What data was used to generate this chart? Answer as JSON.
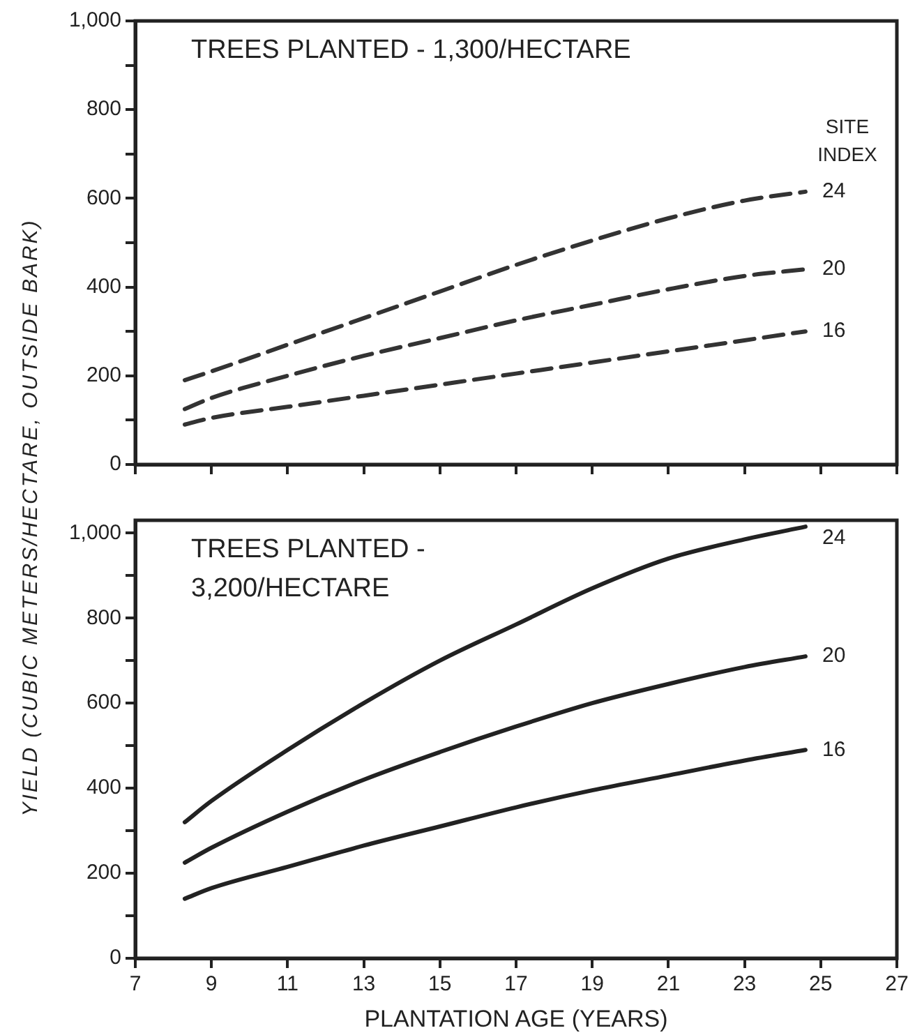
{
  "chart_data": [
    {
      "type": "line",
      "title": "TREES PLANTED - 1,300/HECTARE",
      "annotations": [
        "SITE INDEX"
      ],
      "line_style": "dashed",
      "marker": "none",
      "grid": false,
      "legend": false,
      "tick_labels": "y",
      "xlim": [
        7,
        27
      ],
      "xticks": [
        7,
        9,
        11,
        13,
        15,
        17,
        19,
        21,
        23,
        25,
        27
      ],
      "ylim": [
        0,
        1000
      ],
      "yticks": [
        0,
        {
          "value": 100,
          "label": null
        },
        200,
        {
          "value": 300,
          "label": null
        },
        400,
        {
          "value": 500,
          "label": null
        },
        600,
        {
          "value": 700,
          "label": null
        },
        800,
        {
          "value": 900,
          "label": null
        },
        {
          "value": 1000,
          "label": "1,000"
        }
      ],
      "x": [
        8.3,
        9,
        11,
        13,
        15,
        17,
        19,
        21,
        23,
        24.6
      ],
      "series": [
        {
          "name": "24",
          "color": "#333333",
          "values": [
            190,
            210,
            270,
            330,
            390,
            450,
            505,
            555,
            595,
            615
          ]
        },
        {
          "name": "20",
          "color": "#333333",
          "values": [
            125,
            150,
            200,
            245,
            285,
            325,
            360,
            395,
            425,
            440
          ]
        },
        {
          "name": "16",
          "color": "#333333",
          "values": [
            90,
            105,
            130,
            155,
            180,
            205,
            230,
            255,
            280,
            300
          ]
        }
      ]
    },
    {
      "type": "line",
      "title": "TREES PLANTED - 3,200/HECTARE",
      "xlabel": "PLANTATION AGE (YEARS)",
      "ylabel": "YIELD (CUBIC METERS/HECTARE, OUTSIDE BARK)",
      "line_style": "solid",
      "marker": "none",
      "grid": false,
      "legend": false,
      "xlim": [
        7,
        27
      ],
      "xticks": [
        7,
        9,
        11,
        13,
        15,
        17,
        19,
        21,
        23,
        25,
        27
      ],
      "ylim": [
        0,
        1030
      ],
      "yticks": [
        0,
        {
          "value": 100,
          "label": null
        },
        200,
        {
          "value": 300,
          "label": null
        },
        400,
        {
          "value": 500,
          "label": null
        },
        600,
        {
          "value": 700,
          "label": null
        },
        800,
        {
          "value": 900,
          "label": null
        },
        {
          "value": 1000,
          "label": "1,000"
        }
      ],
      "x": [
        8.3,
        9,
        11,
        13,
        15,
        17,
        19,
        21,
        23,
        24.6
      ],
      "series": [
        {
          "name": "24",
          "color": "#222222",
          "values": [
            320,
            370,
            490,
            600,
            700,
            785,
            870,
            940,
            985,
            1015
          ]
        },
        {
          "name": "20",
          "color": "#222222",
          "values": [
            225,
            260,
            345,
            420,
            485,
            545,
            600,
            645,
            685,
            710
          ]
        },
        {
          "name": "16",
          "color": "#222222",
          "values": [
            140,
            165,
            215,
            265,
            310,
            355,
            395,
            430,
            465,
            490
          ]
        }
      ]
    }
  ]
}
